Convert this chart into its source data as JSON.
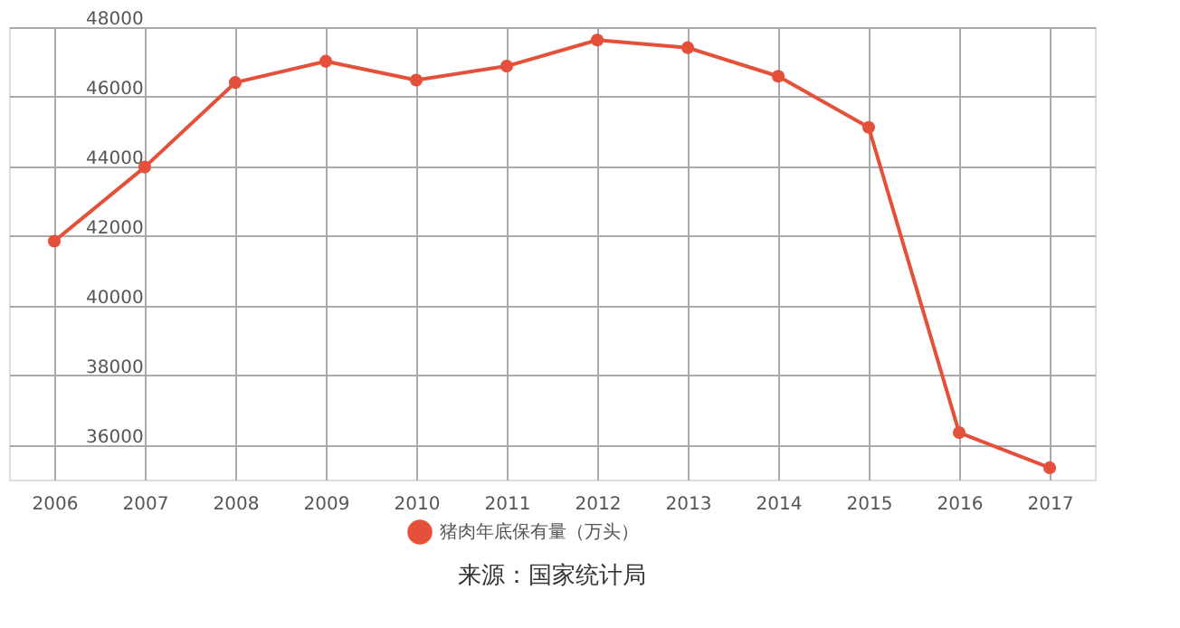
{
  "chart_data": {
    "type": "line",
    "categories": [
      "2006",
      "2007",
      "2008",
      "2009",
      "2010",
      "2011",
      "2012",
      "2013",
      "2014",
      "2015",
      "2016",
      "2017"
    ],
    "series": [
      {
        "name": "猪肉年底保有量（万头）",
        "color": "#e5503a",
        "values": [
          41850,
          43980,
          46410,
          47020,
          46480,
          46880,
          47630,
          47410,
          46590,
          45120,
          36350,
          35340
        ]
      }
    ],
    "ylim": [
      35000,
      48000
    ],
    "yticks": [
      36000,
      38000,
      40000,
      42000,
      44000,
      46000,
      48000
    ],
    "grid": true,
    "legend": "bottom",
    "marker": "circle",
    "line_style": "solid",
    "annotations": [
      "来源：国家统计局"
    ]
  }
}
